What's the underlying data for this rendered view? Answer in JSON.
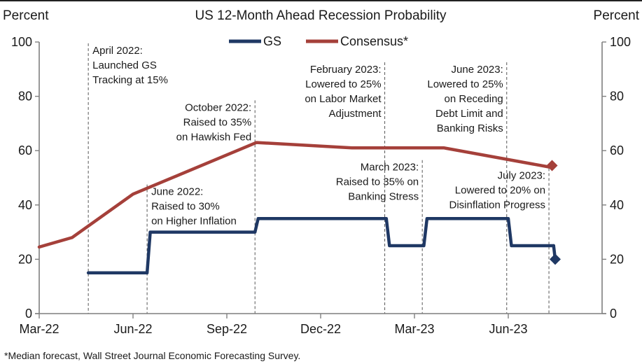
{
  "chart_data": {
    "type": "line",
    "title": "US 12-Month Ahead Recession Probability",
    "ylabel_left": "Percent",
    "ylabel_right": "Percent",
    "ylim": [
      0,
      100
    ],
    "yticks": [
      0,
      20,
      40,
      60,
      80,
      100
    ],
    "ytick_labels": [
      "0",
      "20",
      "40",
      "60",
      "80",
      "100"
    ],
    "x_unit": "months since Mar-22",
    "xlim": [
      0,
      18
    ],
    "xticks": [
      0,
      3,
      6,
      9,
      12,
      15
    ],
    "xtick_labels": [
      "Mar-22",
      "Jun-22",
      "Sep-22",
      "Dec-22",
      "Mar-23",
      "Jun-23"
    ],
    "grid": false,
    "legend": {
      "placement": "top-center",
      "entries": [
        "GS",
        "Consensus*"
      ]
    },
    "colors": {
      "GS": "#1f3864",
      "Consensus": "#a5403a",
      "axis": "#7f7f7f",
      "guide": "#555555"
    },
    "series": [
      {
        "name": "GS",
        "style": "step",
        "x": [
          1.57,
          3.45,
          3.55,
          6.9,
          7.0,
          11.1,
          11.2,
          12.3,
          12.4,
          15.0,
          15.1,
          16.45
        ],
        "y": [
          15,
          15,
          30,
          30,
          35,
          35,
          25,
          25,
          35,
          35,
          25,
          25
        ],
        "endpoint": {
          "x": 16.5,
          "y": 20,
          "marker": "diamond"
        }
      },
      {
        "name": "Consensus*",
        "style": "line",
        "x": [
          0,
          1.05,
          3.0,
          6.95,
          10.0,
          12.95,
          16.3
        ],
        "y": [
          24.5,
          28,
          44,
          63,
          61,
          61,
          54
        ],
        "endpoint": {
          "x": 16.4,
          "y": 54.5,
          "marker": "diamond"
        }
      }
    ],
    "events": [
      {
        "x": 1.57,
        "align": "left",
        "top_value": 99,
        "lines": [
          "April 2022:",
          "Launched GS",
          "Tracking at 15%"
        ]
      },
      {
        "x": 3.45,
        "align": "left",
        "top_value": 47,
        "lines": [
          "June 2022:",
          "Raised to 30%",
          "on Higher Inflation"
        ]
      },
      {
        "x": 6.9,
        "align": "right",
        "top_value": 78,
        "lines": [
          "October 2022:",
          "Raised to 35%",
          "on Hawkish Fed"
        ]
      },
      {
        "x": 11.05,
        "align": "right",
        "top_value": 92,
        "lines": [
          "February 2023:",
          "Lowered to 25%",
          "on Labor Market",
          "Adjustment"
        ]
      },
      {
        "x": 12.25,
        "align": "right",
        "top_value": 56,
        "lines": [
          "March 2023:",
          "Raised to 35% on",
          "Banking Stress"
        ]
      },
      {
        "x": 14.95,
        "align": "right",
        "top_value": 92,
        "lines": [
          "June 2023:",
          "Lowered to 25%",
          "on Receding",
          "Debt Limit  and",
          "Banking  Risks"
        ]
      },
      {
        "x": 16.3,
        "align": "right",
        "top_value": 53,
        "lines": [
          "July 2023:",
          "Lowered to 20% on",
          "Disinflation Progress"
        ]
      }
    ],
    "footnote": "*Median  forecast, Wall Street Journal Economic  Forecasting Survey."
  }
}
